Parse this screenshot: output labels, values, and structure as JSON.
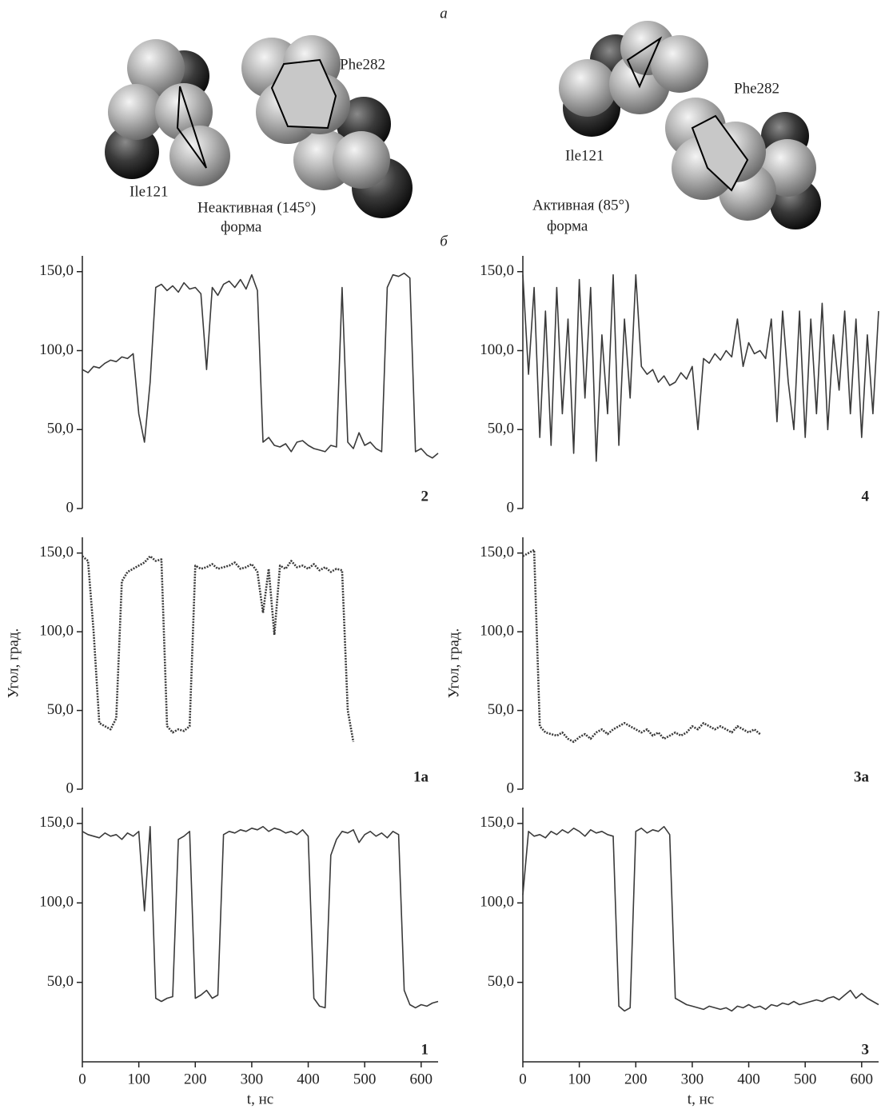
{
  "figure": {
    "panel_a": "а",
    "panel_b": "б",
    "labels": [
      "Ile121",
      "Phe282",
      "Неактивная (145°)",
      "форма",
      "Ile121",
      "Phe282",
      "Активная (85°)",
      "форма"
    ]
  },
  "chart_data": [
    {
      "type": "line",
      "label": "2",
      "x": [
        0,
        10,
        20,
        30,
        40,
        50,
        60,
        70,
        80,
        90,
        100,
        110,
        120,
        130,
        140,
        150,
        160,
        170,
        180,
        190,
        200,
        210,
        220,
        230,
        240,
        250,
        260,
        270,
        280,
        290,
        300,
        310,
        320,
        330,
        340,
        350,
        360,
        370,
        380,
        390,
        400,
        410,
        420,
        430,
        440,
        450,
        460,
        470,
        480,
        490,
        500,
        510,
        520,
        530,
        540,
        550,
        560,
        570,
        580,
        590,
        600,
        610,
        620,
        630
      ],
      "series": [
        {
          "color": "#3a3a3a",
          "style": "solid",
          "values": [
            88,
            86,
            90,
            89,
            92,
            94,
            93,
            96,
            95,
            98,
            60,
            42,
            80,
            140,
            142,
            138,
            141,
            137,
            143,
            139,
            140,
            136,
            88,
            140,
            135,
            142,
            144,
            140,
            145,
            139,
            148,
            138,
            42,
            45,
            40,
            39,
            41,
            36,
            42,
            43,
            40,
            38,
            37,
            36,
            40,
            39,
            140,
            42,
            38,
            48,
            40,
            42,
            38,
            36,
            140,
            148,
            147,
            149,
            146,
            36,
            38,
            34,
            32,
            35
          ]
        }
      ],
      "xlim": [
        0,
        630
      ],
      "ylim": [
        0,
        160
      ],
      "yticks": [
        0,
        {
          "value": 50,
          "label": "50,0"
        },
        {
          "value": 100,
          "label": "100,0"
        },
        {
          "value": 150,
          "label": "150,0"
        }
      ]
    },
    {
      "type": "line",
      "label": "4",
      "x": [
        0,
        10,
        20,
        30,
        40,
        50,
        60,
        70,
        80,
        90,
        100,
        110,
        120,
        130,
        140,
        150,
        160,
        170,
        180,
        190,
        200,
        210,
        220,
        230,
        240,
        250,
        260,
        270,
        280,
        290,
        300,
        310,
        320,
        330,
        340,
        350,
        360,
        370,
        380,
        390,
        400,
        410,
        420,
        430,
        440,
        450,
        460,
        470,
        480,
        490,
        500,
        510,
        520,
        530,
        540,
        550,
        560,
        570,
        580,
        590,
        600,
        610,
        620,
        630
      ],
      "series": [
        {
          "color": "#3a3a3a",
          "style": "solid",
          "values": [
            148,
            85,
            140,
            45,
            125,
            40,
            140,
            60,
            120,
            35,
            145,
            70,
            140,
            30,
            110,
            60,
            148,
            40,
            120,
            70,
            148,
            90,
            85,
            88,
            80,
            84,
            78,
            80,
            86,
            82,
            90,
            50,
            95,
            92,
            98,
            94,
            100,
            96,
            120,
            90,
            105,
            98,
            100,
            95,
            120,
            55,
            125,
            80,
            50,
            125,
            45,
            120,
            60,
            130,
            50,
            110,
            75,
            125,
            60,
            120,
            45,
            110,
            60,
            125
          ]
        }
      ],
      "xlim": [
        0,
        630
      ],
      "ylim": [
        0,
        160
      ],
      "yticks": [
        0,
        {
          "value": 50,
          "label": "50,0"
        },
        {
          "value": 100,
          "label": "100,0"
        },
        {
          "value": 150,
          "label": "150,0"
        }
      ]
    },
    {
      "type": "line",
      "label": "1а",
      "ylabel": "Угол, град.",
      "x": [
        0,
        10,
        20,
        30,
        40,
        50,
        60,
        70,
        80,
        90,
        100,
        110,
        120,
        130,
        140,
        150,
        160,
        170,
        180,
        190,
        200,
        210,
        220,
        230,
        240,
        250,
        260,
        270,
        280,
        290,
        300,
        310,
        320,
        330,
        340,
        350,
        360,
        370,
        380,
        390,
        400,
        410,
        420,
        430,
        440,
        450,
        460,
        470,
        480
      ],
      "series": [
        {
          "color": "#3a3a3a",
          "style": "dotted",
          "values": [
            148,
            145,
            100,
            42,
            40,
            38,
            45,
            132,
            138,
            140,
            142,
            144,
            148,
            145,
            146,
            40,
            36,
            38,
            37,
            40,
            142,
            140,
            141,
            143,
            140,
            141,
            142,
            144,
            140,
            141,
            143,
            138,
            112,
            140,
            98,
            142,
            140,
            145,
            141,
            142,
            140,
            143,
            139,
            141,
            138,
            140,
            139,
            50,
            30
          ]
        }
      ],
      "xlim": [
        0,
        630
      ],
      "ylim": [
        0,
        160
      ],
      "yticks": [
        0,
        {
          "value": 50,
          "label": "50,0"
        },
        {
          "value": 100,
          "label": "100,0"
        },
        {
          "value": 150,
          "label": "150,0"
        }
      ]
    },
    {
      "type": "line",
      "label": "3а",
      "ylabel": "Угол, град.",
      "x": [
        0,
        10,
        20,
        30,
        40,
        50,
        60,
        70,
        80,
        90,
        100,
        110,
        120,
        130,
        140,
        150,
        160,
        170,
        180,
        190,
        200,
        210,
        220,
        230,
        240,
        250,
        260,
        270,
        280,
        290,
        300,
        310,
        320,
        330,
        340,
        350,
        360,
        370,
        380,
        390,
        400,
        410,
        420
      ],
      "series": [
        {
          "color": "#3a3a3a",
          "style": "dotted",
          "values": [
            148,
            150,
            152,
            40,
            36,
            35,
            34,
            36,
            32,
            30,
            33,
            35,
            32,
            36,
            38,
            35,
            38,
            40,
            42,
            40,
            38,
            36,
            38,
            34,
            36,
            32,
            34,
            36,
            34,
            36,
            40,
            38,
            42,
            40,
            38,
            40,
            38,
            36,
            40,
            38,
            36,
            38,
            35
          ]
        }
      ],
      "xlim": [
        0,
        630
      ],
      "ylim": [
        0,
        160
      ],
      "yticks": [
        0,
        {
          "value": 50,
          "label": "50,0"
        },
        {
          "value": 100,
          "label": "100,0"
        },
        {
          "value": 150,
          "label": "150,0"
        }
      ]
    },
    {
      "type": "line",
      "label": "1",
      "xlabel": "t, нс",
      "x": [
        0,
        10,
        20,
        30,
        40,
        50,
        60,
        70,
        80,
        90,
        100,
        110,
        120,
        130,
        140,
        150,
        160,
        170,
        180,
        190,
        200,
        210,
        220,
        230,
        240,
        250,
        260,
        270,
        280,
        290,
        300,
        310,
        320,
        330,
        340,
        350,
        360,
        370,
        380,
        390,
        400,
        410,
        420,
        430,
        440,
        450,
        460,
        470,
        480,
        490,
        500,
        510,
        520,
        530,
        540,
        550,
        560,
        570,
        580,
        590,
        600,
        610,
        620,
        630
      ],
      "series": [
        {
          "color": "#3a3a3a",
          "style": "solid",
          "values": [
            145,
            143,
            142,
            141,
            144,
            142,
            143,
            140,
            144,
            142,
            145,
            95,
            148,
            40,
            38,
            40,
            41,
            140,
            142,
            145,
            40,
            42,
            45,
            40,
            42,
            143,
            145,
            144,
            146,
            145,
            147,
            146,
            148,
            145,
            147,
            146,
            144,
            145,
            143,
            146,
            142,
            40,
            35,
            34,
            130,
            140,
            145,
            144,
            146,
            138,
            143,
            145,
            142,
            144,
            141,
            145,
            143,
            45,
            36,
            34,
            36,
            35,
            37,
            38
          ]
        }
      ],
      "xlim": [
        0,
        630
      ],
      "ylim": [
        0,
        160
      ],
      "xticks": [
        0,
        100,
        200,
        300,
        400,
        500,
        600
      ],
      "yticks": [
        {
          "value": 50,
          "label": "50,0"
        },
        {
          "value": 100,
          "label": "100,0"
        },
        {
          "value": 150,
          "label": "150,0"
        }
      ]
    },
    {
      "type": "line",
      "label": "3",
      "xlabel": "t, нс",
      "x": [
        0,
        10,
        20,
        30,
        40,
        50,
        60,
        70,
        80,
        90,
        100,
        110,
        120,
        130,
        140,
        150,
        160,
        170,
        180,
        190,
        200,
        210,
        220,
        230,
        240,
        250,
        260,
        270,
        280,
        290,
        300,
        310,
        320,
        330,
        340,
        350,
        360,
        370,
        380,
        390,
        400,
        410,
        420,
        430,
        440,
        450,
        460,
        470,
        480,
        490,
        500,
        510,
        520,
        530,
        540,
        550,
        560,
        570,
        580,
        590,
        600,
        610,
        620,
        630
      ],
      "series": [
        {
          "color": "#3a3a3a",
          "style": "solid",
          "values": [
            105,
            145,
            142,
            143,
            141,
            145,
            143,
            146,
            144,
            147,
            145,
            142,
            146,
            144,
            145,
            143,
            142,
            35,
            32,
            34,
            145,
            147,
            144,
            146,
            145,
            148,
            143,
            40,
            38,
            36,
            35,
            34,
            33,
            35,
            34,
            33,
            34,
            32,
            35,
            34,
            36,
            34,
            35,
            33,
            36,
            35,
            37,
            36,
            38,
            36,
            37,
            38,
            39,
            38,
            40,
            41,
            39,
            42,
            45,
            40,
            43,
            40,
            38,
            36
          ]
        }
      ],
      "xlim": [
        0,
        630
      ],
      "ylim": [
        0,
        160
      ],
      "xticks": [
        0,
        100,
        200,
        300,
        400,
        500,
        600
      ],
      "yticks": [
        {
          "value": 50,
          "label": "50,0"
        },
        {
          "value": 100,
          "label": "100,0"
        },
        {
          "value": 150,
          "label": "150,0"
        }
      ]
    }
  ]
}
